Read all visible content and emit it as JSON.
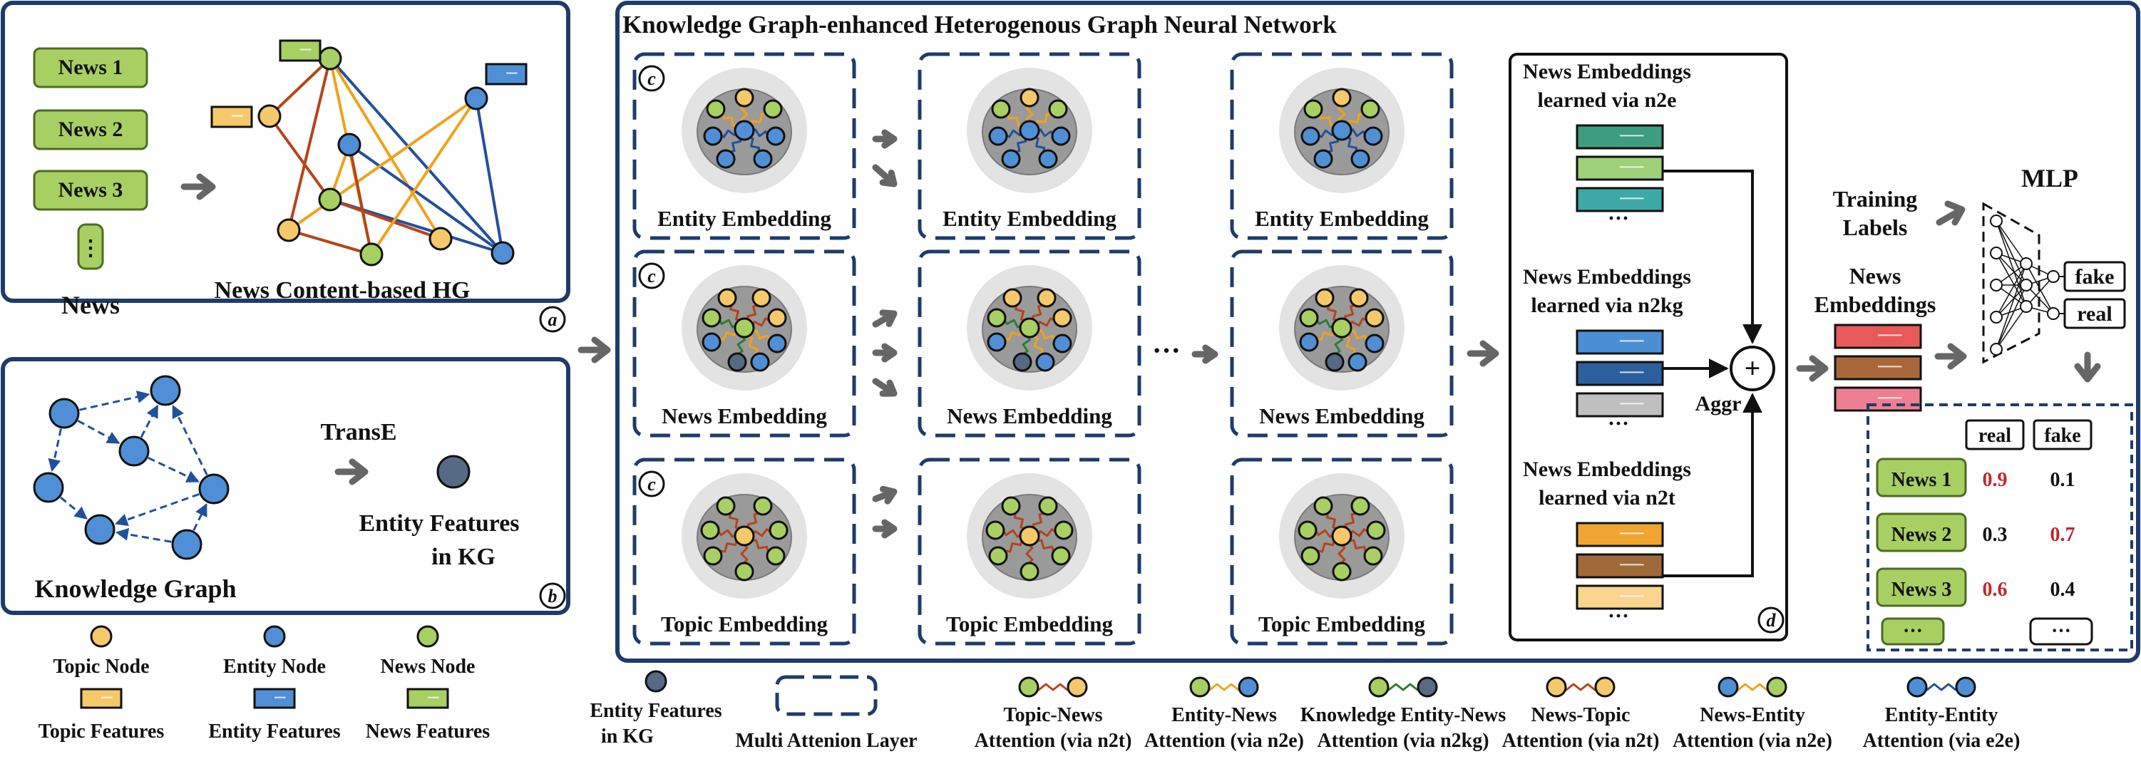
{
  "colors": {
    "frame": "#1f3b6b",
    "topic": "#f5c96a",
    "entity": "#4f8fd6",
    "news": "#a8cf62",
    "kg_entity": "#566a85",
    "arrow": "#666666",
    "prob_red": "#c0282b",
    "edge_topic": "#b5441c",
    "edge_entity": "#f0a21b",
    "edge_kg": "#2e7d32",
    "edge_e2e": "#23509b"
  },
  "panel_a": {
    "news_items": [
      "News 1",
      "News 2",
      "News 3"
    ],
    "ellipsis": "⋮",
    "news_label": "News",
    "hg_label": "News Content-based HG",
    "badge": "a"
  },
  "panel_b": {
    "kg_label": "Knowledge Graph",
    "transe_label": "TransE",
    "entity_features_line1": "Entity Features",
    "entity_features_line2": "in KG",
    "badge": "b"
  },
  "main": {
    "title": "Knowledge Graph-enhanced Heterogenous Graph Neural Network",
    "rows": [
      {
        "label": "Entity Embedding"
      },
      {
        "label": "News Embedding"
      },
      {
        "label": "Topic Embedding"
      }
    ],
    "c_badge": "c",
    "ellipsis": "···"
  },
  "panel_d": {
    "groups": [
      {
        "line1": "News Embeddings",
        "line2": "learned via n2e",
        "colors": [
          "#3e9d7e",
          "#9ed07a",
          "#3ea8a8"
        ]
      },
      {
        "line1": "News Embeddings",
        "line2": "learned via n2kg",
        "colors": [
          "#4a8fd4",
          "#2d5f9e",
          "#bfbfbf"
        ]
      },
      {
        "line1": "News Embeddings",
        "line2": "learned via n2t",
        "colors": [
          "#f0a531",
          "#a0693a",
          "#f9d58e"
        ]
      }
    ],
    "dots": "···",
    "plus": "+",
    "aggr": "Aggr",
    "badge": "d"
  },
  "output": {
    "training_labels_line1": "Training",
    "training_labels_line2": "Labels",
    "news_emb_line1": "News",
    "news_emb_line2": "Embeddings",
    "news_emb_colors": [
      "#e85a5a",
      "#a8673b",
      "#ee7e91"
    ],
    "mlp_label": "MLP",
    "mlp_out_fake": "fake",
    "mlp_out_real": "real",
    "table_headers": [
      "real",
      "fake"
    ],
    "table_rows": [
      {
        "news": "News 1",
        "real": "0.9",
        "fake": "0.1",
        "real_red": true,
        "fake_red": false
      },
      {
        "news": "News 2",
        "real": "0.3",
        "fake": "0.7",
        "real_red": false,
        "fake_red": true
      },
      {
        "news": "News 3",
        "real": "0.6",
        "fake": "0.4",
        "real_red": true,
        "fake_red": false
      }
    ],
    "table_more": "···"
  },
  "legend": {
    "nodes": [
      {
        "label": "Topic Node",
        "type": "topic"
      },
      {
        "label": "Entity Node",
        "type": "entity"
      },
      {
        "label": "News Node",
        "type": "news"
      }
    ],
    "features": [
      {
        "label": "Topic Features",
        "type": "topic"
      },
      {
        "label": "Entity Features",
        "type": "entity"
      },
      {
        "label": "News Features",
        "type": "news"
      }
    ],
    "kg_features_line1": "Entity Features",
    "kg_features_line2": "in KG",
    "multi_attention": "Multi Attenion Layer",
    "attentions": [
      {
        "line1": "Topic-News",
        "line2": "Attention (via n2t)",
        "a": "news",
        "b": "topic",
        "edge": "edge_topic"
      },
      {
        "line1": "Entity-News",
        "line2": "Attention (via n2e)",
        "a": "news",
        "b": "entity",
        "edge": "edge_entity"
      },
      {
        "line1": "Knowledge Entity-News",
        "line2": "Attention (via n2kg)",
        "a": "news",
        "b": "kg_entity",
        "edge": "edge_kg"
      },
      {
        "line1": "News-Topic",
        "line2": "Attention (via n2t)",
        "a": "topic",
        "b": "topic",
        "edge": "edge_topic"
      },
      {
        "line1": "News-Entity",
        "line2": "Attention (via n2e)",
        "a": "entity",
        "b": "news",
        "edge": "edge_entity"
      },
      {
        "line1": "Entity-Entity",
        "line2": "Attention (via e2e)",
        "a": "entity",
        "b": "entity",
        "edge": "edge_e2e"
      }
    ]
  }
}
